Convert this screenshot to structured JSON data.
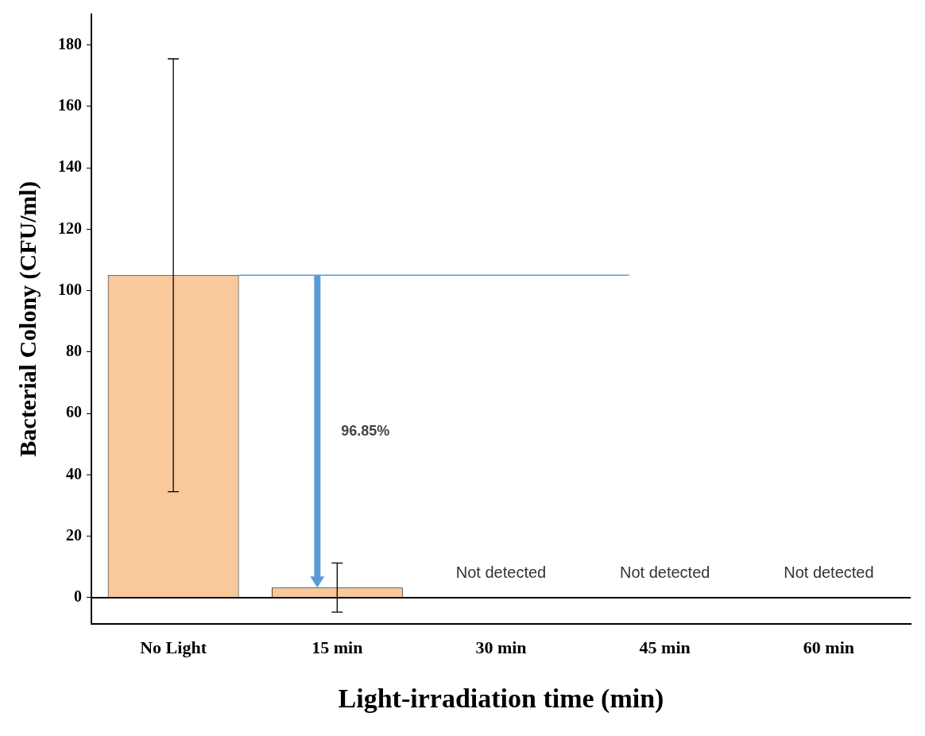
{
  "chart_data": {
    "type": "bar",
    "x_label": "Light-irradiation time (min)",
    "y_label": "Bacterial Colony (CFU/ml)",
    "categories": [
      "No Light",
      "15 min",
      "30 min",
      "45 min",
      "60 min"
    ],
    "values": [
      105,
      3.3,
      null,
      null,
      null
    ],
    "errors": [
      70.5,
      8,
      null,
      null,
      null
    ],
    "color": "#f9c89b",
    "ylim": [
      -8.5,
      190
    ],
    "yticks": [
      0,
      20,
      40,
      60,
      80,
      100,
      120,
      140,
      160,
      180
    ],
    "grid": false,
    "annotations": [
      {
        "text": "Not detected",
        "category": "30 min"
      },
      {
        "text": "Not detected",
        "category": "45 min"
      },
      {
        "text": "Not detected",
        "category": "60 min"
      },
      {
        "text": "96.85%",
        "type": "arrow",
        "category": "15 min",
        "from": 105,
        "to": 3.3,
        "color": "#5b9bd5"
      }
    ],
    "reference_line": {
      "y": 105,
      "from": "No Light",
      "to": "45 min",
      "color": "#5b9bd5"
    }
  }
}
